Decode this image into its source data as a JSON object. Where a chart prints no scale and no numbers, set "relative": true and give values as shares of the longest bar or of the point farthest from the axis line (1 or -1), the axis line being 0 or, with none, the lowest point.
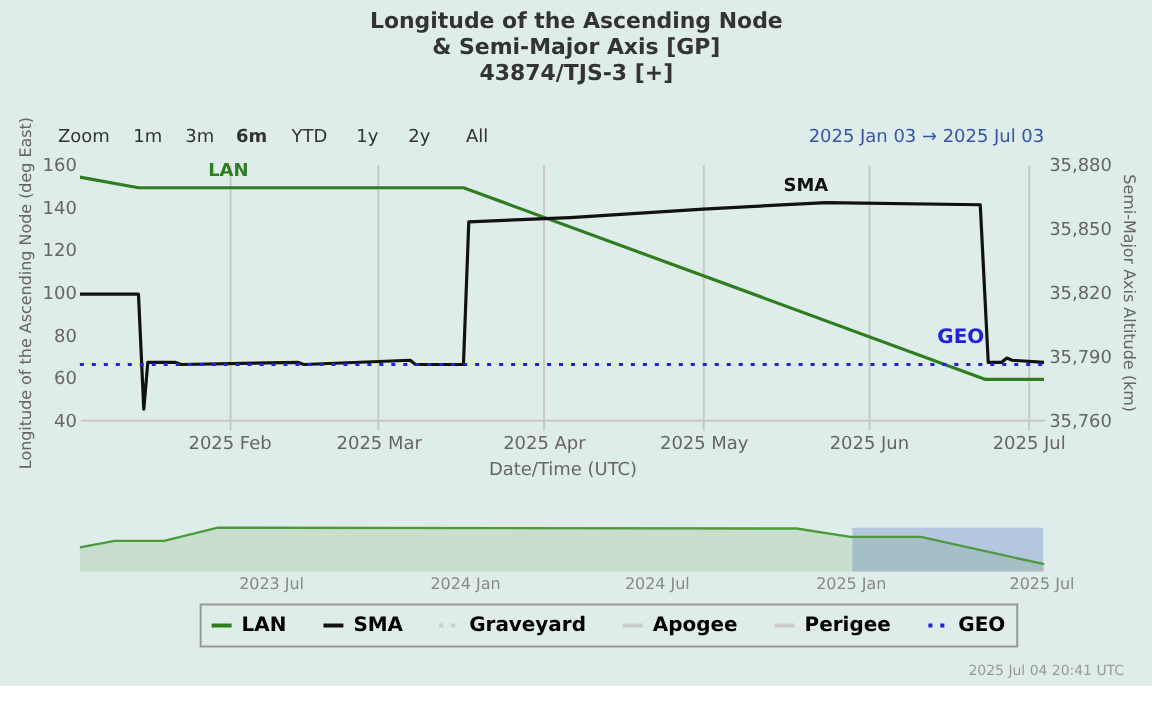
{
  "chart_data": [
    {
      "type": "line",
      "title": "Longitude of the Ascending Node\n& Semi-Major Axis [GP]\n43874/TJS-3 [+]",
      "xlabel": "Date/Time (UTC)",
      "ylabel": "Longitude of the Ascending Node (deg East)",
      "y2label": "Semi-Major Axis Altitude (km)",
      "xlim": [
        "2025-01-04",
        "2025-07-04"
      ],
      "xticks": [
        {
          "value": "2025-02-01",
          "label": "2025 Feb"
        },
        {
          "value": "2025-03-01",
          "label": "2025 Mar"
        },
        {
          "value": "2025-04-01",
          "label": "2025 Apr"
        },
        {
          "value": "2025-05-01",
          "label": "2025 May"
        },
        {
          "value": "2025-06-01",
          "label": "2025 Jun"
        },
        {
          "value": "2025-07-01",
          "label": "2025 Jul"
        }
      ],
      "ylim": [
        40,
        160
      ],
      "yticks": [
        40,
        60,
        80,
        100,
        120,
        140,
        160
      ],
      "y2lim": [
        35760,
        35880
      ],
      "y2ticks": [
        {
          "value": 35760,
          "label": "35,760"
        },
        {
          "value": 35790,
          "label": "35,790"
        },
        {
          "value": 35820,
          "label": "35,820"
        },
        {
          "value": 35850,
          "label": "35,850"
        },
        {
          "value": 35880,
          "label": "35,880"
        }
      ],
      "grid": "x",
      "legend": "bottom",
      "marker": "none",
      "series": [
        {
          "name": "LAN",
          "color": "#2e7d1e",
          "axis": "y",
          "line_style": "solid",
          "x": [
            "2025-01-04",
            "2025-01-15",
            "2025-03-17",
            "2025-06-23",
            "2025-07-04"
          ],
          "values": [
            154,
            149,
            149,
            59,
            59
          ]
        },
        {
          "name": "SMA",
          "color": "#111111",
          "axis": "y2",
          "line_style": "solid",
          "x": [
            "2025-01-04",
            "2025-01-15",
            "2025-01-16",
            "2025-01-16T18:00",
            "2025-01-22",
            "2025-01-23",
            "2025-02-14",
            "2025-02-15",
            "2025-03-07",
            "2025-03-08",
            "2025-03-17",
            "2025-03-18",
            "2025-04-06",
            "2025-05-01",
            "2025-05-24",
            "2025-06-22",
            "2025-06-23T12:00",
            "2025-06-26",
            "2025-06-27",
            "2025-06-28",
            "2025-07-04"
          ],
          "values": [
            35819,
            35819,
            35765,
            35787,
            35787,
            35786,
            35787,
            35786,
            35788,
            35786,
            35786,
            35853,
            35855,
            35859,
            35862,
            35861,
            35787,
            35787,
            35789,
            35788,
            35787
          ]
        },
        {
          "name": "Graveyard",
          "color": "#cccccc",
          "axis": "y2",
          "line_style": "dotted"
        },
        {
          "name": "Apogee",
          "color": "#cccccc",
          "axis": "y2",
          "line_style": "solid"
        },
        {
          "name": "Perigee",
          "color": "#cccccc",
          "axis": "y2",
          "line_style": "solid"
        }
      ],
      "ref_lines": [
        {
          "axis": "y2",
          "value": 35786,
          "label": "GEO",
          "color": "#2020e0",
          "line_style": "dotted"
        }
      ],
      "annotations": [
        "Zoom",
        "1m",
        "3m",
        "6m",
        "YTD",
        "1y",
        "2y",
        "All",
        "2025 Jan 03 → 2025 Jul 03"
      ]
    },
    {
      "type": "area",
      "relative": true,
      "tick_labels": "x",
      "xlim": [
        "2023-01-01",
        "2025-07-04"
      ],
      "xticks": [
        {
          "value": "2023-07-01",
          "label": "2023 Jul"
        },
        {
          "value": "2024-01-01",
          "label": "2024 Jan"
        },
        {
          "value": "2024-07-01",
          "label": "2024 Jul"
        },
        {
          "value": "2025-01-01",
          "label": "2025 Jan"
        },
        {
          "value": "2025-07-01",
          "label": "2025 Jul"
        }
      ],
      "series": [
        {
          "color": "#4c9a3c",
          "x": [
            "2023-01-01",
            "2023-02-03",
            "2023-03-22",
            "2023-05-12",
            "2024-11-11",
            "2025-01-01",
            "2025-03-09",
            "2025-07-04"
          ],
          "values": [
            0.55,
            0.7,
            0.7,
            1,
            0.98,
            0.79,
            0.79,
            0.17
          ]
        }
      ],
      "bands": [
        {
          "axis": "x",
          "from": "2025-01-03",
          "to": "2025-07-03",
          "color": "#a9bedc"
        }
      ],
      "annotations": [
        "2025 Jul 04 20:41 UTC"
      ]
    }
  ]
}
